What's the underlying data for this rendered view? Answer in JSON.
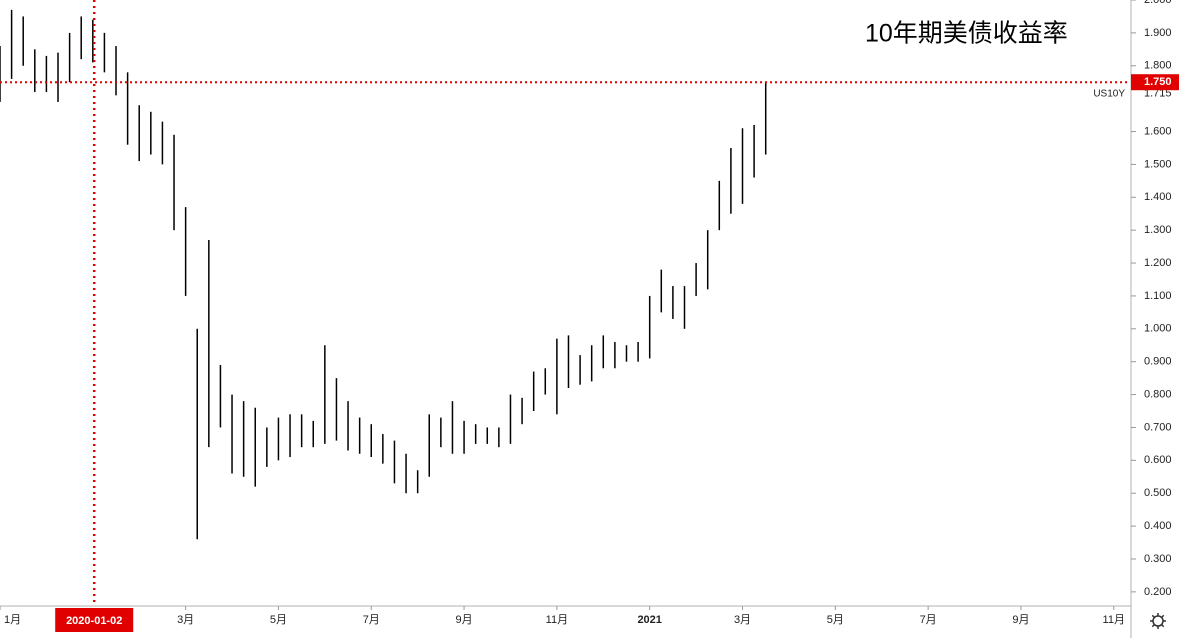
{
  "chart_data": {
    "type": "range-bar",
    "title": "10年期美债收益率",
    "symbol": "US10Y",
    "color": "#000000",
    "x": [
      0,
      0.25,
      0.5,
      0.75,
      1,
      1.25,
      1.5,
      1.75,
      2,
      2.25,
      2.5,
      2.75,
      3,
      3.25,
      3.5,
      3.75,
      4,
      4.25,
      4.5,
      4.75,
      5,
      5.25,
      5.5,
      5.75,
      6,
      6.25,
      6.5,
      6.75,
      7,
      7.25,
      7.5,
      7.75,
      8,
      8.25,
      8.5,
      8.75,
      9,
      9.25,
      9.5,
      9.75,
      10,
      10.25,
      10.5,
      10.75,
      11,
      11.25,
      11.5,
      11.75,
      12,
      12.25,
      12.5,
      12.75,
      13,
      13.25,
      13.5,
      13.75,
      14,
      14.25,
      14.5,
      14.75,
      15,
      15.25,
      15.5,
      15.75,
      16,
      16.25,
      16.5
    ],
    "high": [
      1.86,
      1.97,
      1.95,
      1.85,
      1.83,
      1.84,
      1.9,
      1.95,
      1.94,
      1.9,
      1.86,
      1.78,
      1.68,
      1.66,
      1.63,
      1.59,
      1.37,
      1.0,
      1.27,
      0.89,
      0.8,
      0.78,
      0.76,
      0.7,
      0.73,
      0.74,
      0.74,
      0.72,
      0.95,
      0.85,
      0.78,
      0.73,
      0.71,
      0.68,
      0.66,
      0.62,
      0.57,
      0.74,
      0.73,
      0.78,
      0.72,
      0.71,
      0.7,
      0.7,
      0.8,
      0.79,
      0.87,
      0.88,
      0.97,
      0.98,
      0.92,
      0.95,
      0.98,
      0.96,
      0.95,
      0.96,
      1.1,
      1.18,
      1.13,
      1.13,
      1.2,
      1.3,
      1.45,
      1.55,
      1.61,
      1.62,
      1.75
    ],
    "low": [
      1.69,
      1.76,
      1.8,
      1.72,
      1.72,
      1.69,
      1.75,
      1.82,
      1.81,
      1.78,
      1.71,
      1.56,
      1.51,
      1.53,
      1.5,
      1.3,
      1.1,
      0.36,
      0.64,
      0.7,
      0.56,
      0.55,
      0.52,
      0.58,
      0.6,
      0.61,
      0.64,
      0.64,
      0.65,
      0.66,
      0.63,
      0.62,
      0.61,
      0.59,
      0.53,
      0.5,
      0.5,
      0.55,
      0.64,
      0.62,
      0.62,
      0.65,
      0.65,
      0.64,
      0.65,
      0.71,
      0.75,
      0.8,
      0.74,
      0.82,
      0.83,
      0.84,
      0.88,
      0.88,
      0.9,
      0.9,
      0.91,
      1.05,
      1.03,
      1.0,
      1.1,
      1.12,
      1.3,
      1.35,
      1.38,
      1.46,
      1.53
    ],
    "xlim": [
      0,
      24.35
    ],
    "xticks": [
      {
        "value": 0,
        "label": "1月"
      },
      {
        "value": 4,
        "label": "3月"
      },
      {
        "value": 6,
        "label": "5月"
      },
      {
        "value": 8,
        "label": "7月"
      },
      {
        "value": 10,
        "label": "9月"
      },
      {
        "value": 12,
        "label": "11月"
      },
      {
        "value": 14,
        "label": "2021"
      },
      {
        "value": 16,
        "label": "3月"
      },
      {
        "value": 18,
        "label": "5月"
      },
      {
        "value": 20,
        "label": "7月"
      },
      {
        "value": 22,
        "label": "9月"
      },
      {
        "value": 24,
        "label": "11月"
      }
    ],
    "ylim": [
      0.157,
      2.0
    ],
    "yticks": [
      {
        "value": 0.2,
        "label": "0.200"
      },
      {
        "value": 0.3,
        "label": "0.300"
      },
      {
        "value": 0.4,
        "label": "0.400"
      },
      {
        "value": 0.5,
        "label": "0.500"
      },
      {
        "value": 0.6,
        "label": "0.600"
      },
      {
        "value": 0.7,
        "label": "0.700"
      },
      {
        "value": 0.8,
        "label": "0.800"
      },
      {
        "value": 0.9,
        "label": "0.900"
      },
      {
        "value": 1.0,
        "label": "1.000"
      },
      {
        "value": 1.1,
        "label": "1.100"
      },
      {
        "value": 1.2,
        "label": "1.200"
      },
      {
        "value": 1.3,
        "label": "1.300"
      },
      {
        "value": 1.4,
        "label": "1.400"
      },
      {
        "value": 1.5,
        "label": "1.500"
      },
      {
        "value": 1.6,
        "label": "1.600"
      },
      {
        "value": 1.8,
        "label": "1.800"
      },
      {
        "value": 1.9,
        "label": "1.900"
      },
      {
        "value": 2.0,
        "label": "2.000"
      }
    ],
    "last_price": {
      "value": 1.715,
      "label": "1.715"
    },
    "crosshair": {
      "x": 2.03,
      "x_label": "2020-01-02",
      "y": 1.75,
      "y_label": "1.750",
      "color": "#e00000"
    }
  }
}
